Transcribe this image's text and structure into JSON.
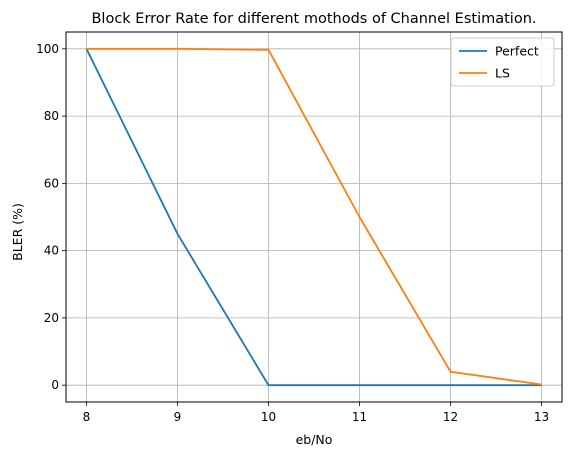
{
  "chart_data": {
    "type": "line",
    "title": "Block Error Rate for different mothods of Channel Estimation.",
    "xlabel": "eb/No",
    "ylabel": "BLER (%)",
    "x": [
      8,
      9,
      10,
      11,
      12,
      13
    ],
    "xlim": [
      7.775,
      13.225
    ],
    "ylim": [
      -5,
      105
    ],
    "xticks": [
      8,
      9,
      10,
      11,
      12,
      13
    ],
    "yticks": [
      0,
      20,
      40,
      60,
      80,
      100
    ],
    "grid": true,
    "legend_position": "top-right",
    "series": [
      {
        "name": "Perfect",
        "color": "#1f77b4",
        "values": [
          100,
          45,
          0,
          0,
          0,
          0
        ]
      },
      {
        "name": "LS",
        "color": "#ff7f0e",
        "values": [
          100,
          100,
          99.7,
          50,
          4,
          0.2
        ]
      }
    ]
  }
}
